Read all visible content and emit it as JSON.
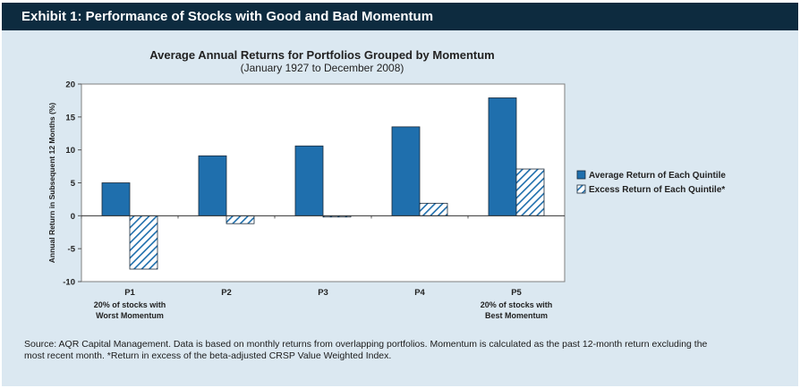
{
  "header": {
    "title": "Exhibit 1: Performance of Stocks with Good and Bad Momentum"
  },
  "colors": {
    "header_bg": "#0d2b3f",
    "panel_bg": "#dbe8f1",
    "bar_fill": "#1f6fad",
    "hatch": "#1f6fad"
  },
  "chart_data": {
    "type": "bar",
    "title": "Average Annual Returns for Portfolios Grouped by Momentum",
    "subtitle": "(January 1927 to December 2008)",
    "ylabel": "Annual Return in Subsequent 12 Months (%)",
    "xlabel": "",
    "ylim": [
      -10,
      20
    ],
    "yticks": [
      20,
      15,
      10,
      5,
      0,
      -5,
      -10
    ],
    "categories": [
      "P1",
      "P2",
      "P3",
      "P4",
      "P5"
    ],
    "category_sublabels": [
      [
        "20% of stocks with",
        "Worst Momentum"
      ],
      [],
      [],
      [],
      [
        "20% of stocks with",
        "Best Momentum"
      ]
    ],
    "series": [
      {
        "name": "Average Return of Each Quintile",
        "style": "solid",
        "values": [
          5.0,
          9.1,
          10.6,
          13.5,
          17.9
        ]
      },
      {
        "name": "Excess Return of Each Quintile*",
        "style": "hatched",
        "values": [
          -8.1,
          -1.2,
          -0.2,
          1.9,
          7.1
        ]
      }
    ],
    "grid": false,
    "legend_position": "right"
  },
  "footnote": {
    "line1": "Source: AQR Capital Management. Data is based on monthly returns from overlapping portfolios. Momentum is calculated as the past 12-month return excluding the",
    "line2": "most recent month. *Return in excess of the beta-adjusted CRSP Value Weighted Index."
  }
}
